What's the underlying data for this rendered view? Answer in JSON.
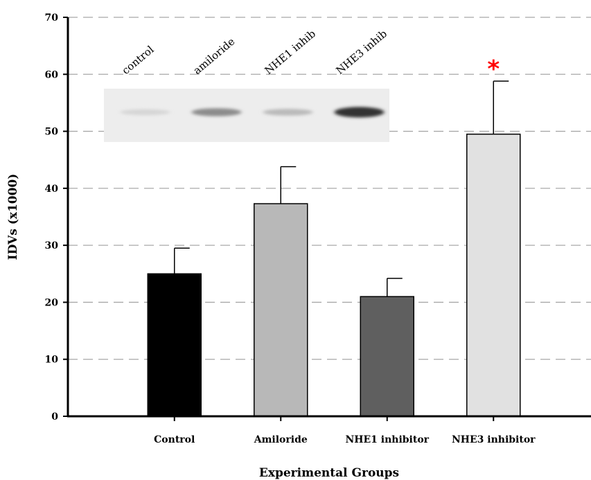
{
  "chart_data": {
    "type": "bar",
    "xlabel": "Experimental Groups",
    "ylabel": "IDVs (x1000)",
    "ylim": [
      0,
      70
    ],
    "yticks": [
      0,
      10,
      20,
      30,
      40,
      50,
      60,
      70
    ],
    "grid": true,
    "categories": [
      "Control",
      "Amiloride",
      "NHE1 inhibitor",
      "NHE3 inhibitor"
    ],
    "values": [
      25,
      37.3,
      21,
      49.5
    ],
    "errors": [
      4.5,
      6.5,
      3.2,
      9.3
    ],
    "colors": [
      "#000000",
      "#b8b8b8",
      "#5f5f5f",
      "#e1e1e1"
    ],
    "significance": [
      {
        "category": "NHE3 inhibitor",
        "marker": "*",
        "color": "#ff0000"
      }
    ],
    "inset_blot": {
      "lane_labels": [
        "control",
        "amiloride",
        "NHE1 inhib",
        "NHE3 inhib"
      ],
      "band_intensity": [
        0.08,
        0.45,
        0.22,
        0.9
      ]
    }
  }
}
